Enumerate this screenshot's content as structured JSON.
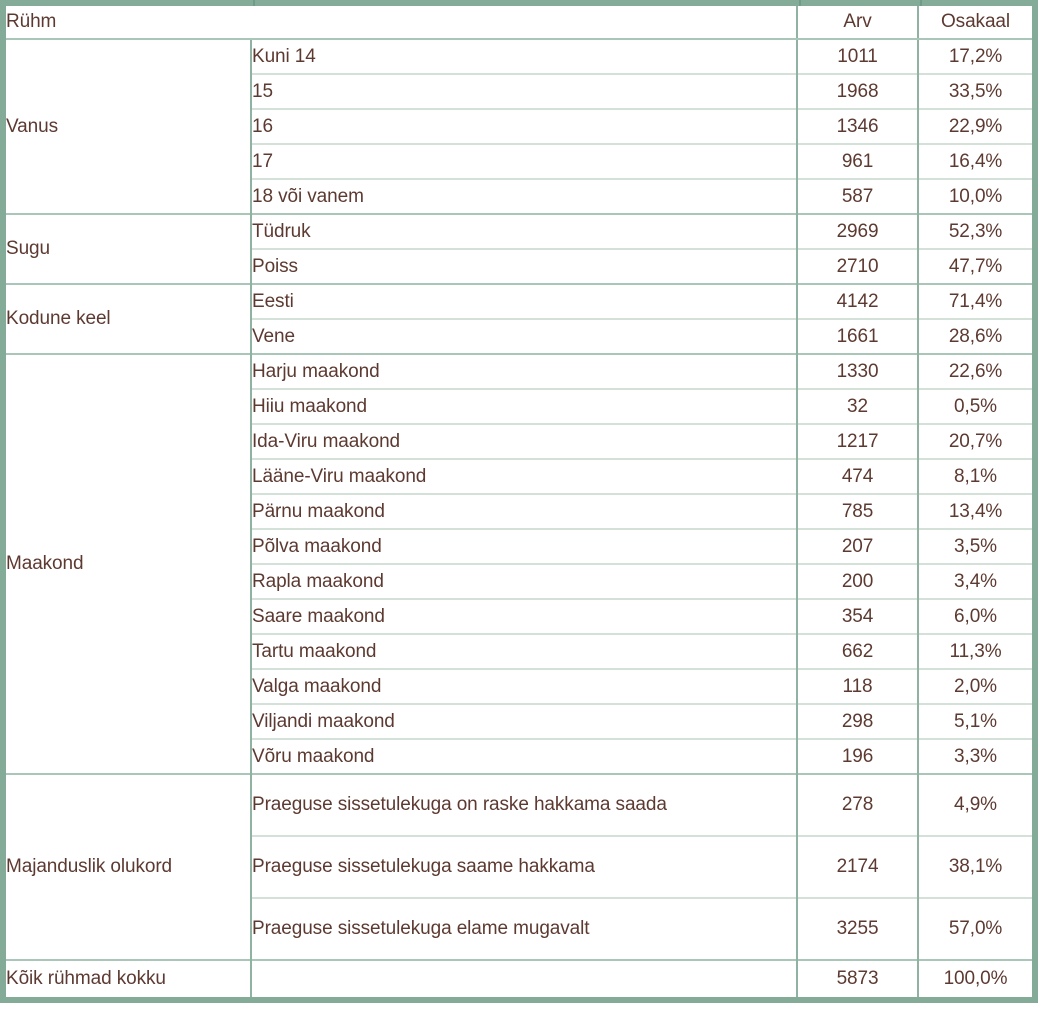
{
  "colors": {
    "text": "#5d3a31",
    "outer_border": "#84ab98",
    "column_divider": "#8fb2a2",
    "group_divider": "#a9c6b8",
    "row_divider": "#d3e1d9",
    "tick": "#6f9c88",
    "background": "#ffffff"
  },
  "table": {
    "header": {
      "group": "Rühm",
      "arv": "Arv",
      "osakaal": "Osakaal"
    },
    "groups": [
      {
        "label": "Vanus",
        "rows": [
          {
            "name": "Kuni 14",
            "arv": "1011",
            "osakaal": "17,2%"
          },
          {
            "name": "15",
            "arv": "1968",
            "osakaal": "33,5%"
          },
          {
            "name": "16",
            "arv": "1346",
            "osakaal": "22,9%"
          },
          {
            "name": "17",
            "arv": "961",
            "osakaal": "16,4%"
          },
          {
            "name": "18 või vanem",
            "arv": "587",
            "osakaal": "10,0%"
          }
        ]
      },
      {
        "label": "Sugu",
        "rows": [
          {
            "name": "Tüdruk",
            "arv": "2969",
            "osakaal": "52,3%"
          },
          {
            "name": "Poiss",
            "arv": "2710",
            "osakaal": "47,7%"
          }
        ]
      },
      {
        "label": "Kodune keel",
        "rows": [
          {
            "name": "Eesti",
            "arv": "4142",
            "osakaal": "71,4%"
          },
          {
            "name": "Vene",
            "arv": "1661",
            "osakaal": "28,6%"
          }
        ]
      },
      {
        "label": "Maakond",
        "rows": [
          {
            "name": "Harju maakond",
            "arv": "1330",
            "osakaal": "22,6%"
          },
          {
            "name": "Hiiu maakond",
            "arv": "32",
            "osakaal": "0,5%"
          },
          {
            "name": "Ida-Viru maakond",
            "arv": "1217",
            "osakaal": "20,7%"
          },
          {
            "name": "Lääne-Viru maakond",
            "arv": "474",
            "osakaal": "8,1%"
          },
          {
            "name": "Pärnu maakond",
            "arv": "785",
            "osakaal": "13,4%"
          },
          {
            "name": "Põlva maakond",
            "arv": "207",
            "osakaal": "3,5%"
          },
          {
            "name": "Rapla maakond",
            "arv": "200",
            "osakaal": "3,4%"
          },
          {
            "name": "Saare maakond",
            "arv": "354",
            "osakaal": "6,0%"
          },
          {
            "name": "Tartu maakond",
            "arv": "662",
            "osakaal": "11,3%"
          },
          {
            "name": "Valga maakond",
            "arv": "118",
            "osakaal": "2,0%"
          },
          {
            "name": "Viljandi maakond",
            "arv": "298",
            "osakaal": "5,1%"
          },
          {
            "name": "Võru maakond",
            "arv": "196",
            "osakaal": "3,3%"
          }
        ]
      },
      {
        "label": "Majanduslik olukord",
        "tall": true,
        "rows": [
          {
            "name": "Praeguse sissetulekuga on raske hakkama saada",
            "arv": "278",
            "osakaal": "4,9%"
          },
          {
            "name": "Praeguse sissetulekuga saame hakkama",
            "arv": "2174",
            "osakaal": "38,1%"
          },
          {
            "name": "Praeguse sissetulekuga elame mugavalt",
            "arv": "3255",
            "osakaal": "57,0%"
          }
        ]
      }
    ],
    "footer": {
      "label": "Kõik rühmad kokku",
      "arv": "5873",
      "osakaal": "100,0%"
    }
  }
}
